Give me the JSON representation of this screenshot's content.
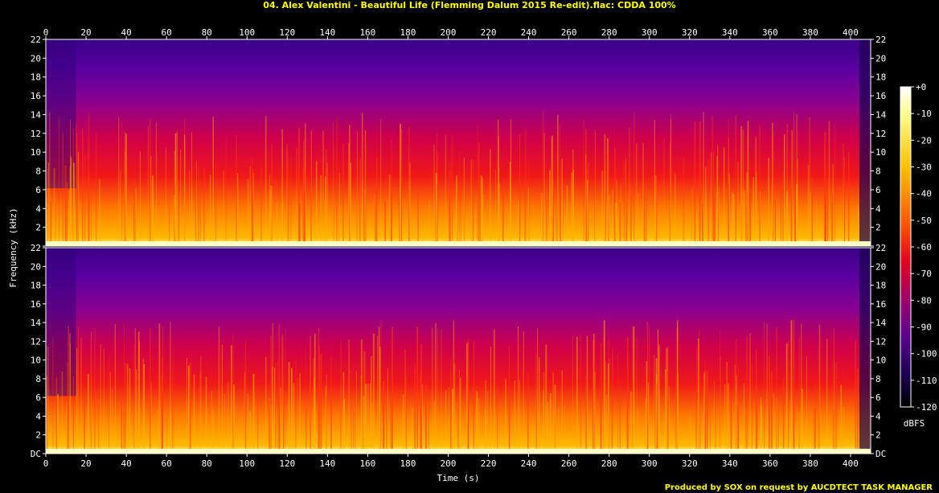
{
  "title": "04. Alex Valentini - Beautiful Life (Flemming Dalum 2015 Re-edit).flac: CDDA 100%",
  "footer": "Produced by SOX on request by AUCDTECT TASK MANAGER",
  "colors": {
    "text": "#ffffff",
    "title": "#ffff00",
    "background": "#000000"
  },
  "chart_data": {
    "type": "heatmap",
    "xlabel": "Time (s)",
    "ylabel": "Frequency (kHz)",
    "colorbar_label": "dBFS",
    "xlim": [
      0,
      410
    ],
    "ylim": [
      0,
      22
    ],
    "x_ticks": [
      "0",
      "20",
      "40",
      "60",
      "80",
      "100",
      "120",
      "140",
      "160",
      "180",
      "200",
      "220",
      "240",
      "260",
      "280",
      "300",
      "320",
      "340",
      "360",
      "380",
      "400"
    ],
    "y_ticks": [
      "DC",
      "2",
      "4",
      "6",
      "8",
      "10",
      "12",
      "14",
      "16",
      "18",
      "20",
      "22"
    ],
    "colorbar_ticks": [
      "+0",
      "-10",
      "-20",
      "-30",
      "-40",
      "-50",
      "-60",
      "-70",
      "-80",
      "-90",
      "-100",
      "-110",
      "-120"
    ],
    "colorbar_range": [
      -120,
      0
    ],
    "channels": 2,
    "colormap": [
      "#000000",
      "#1a0050",
      "#5a0090",
      "#a0006a",
      "#e00020",
      "#ff5a00",
      "#ffc000",
      "#ffff90",
      "#ffffff"
    ]
  }
}
